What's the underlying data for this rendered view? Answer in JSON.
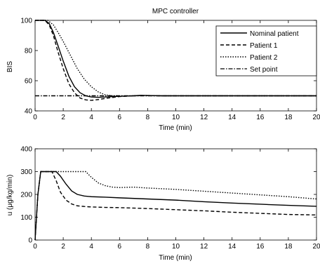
{
  "chart_data": [
    {
      "type": "line",
      "title": "MPC controller",
      "xlabel": "Time (min)",
      "ylabel": "BIS",
      "xlim": [
        0,
        20
      ],
      "ylim": [
        40,
        100
      ],
      "xticks": [
        0,
        2,
        4,
        6,
        8,
        10,
        12,
        14,
        16,
        18,
        20
      ],
      "yticks": [
        40,
        60,
        80,
        100
      ],
      "grid": false,
      "legend_position": "top-right",
      "series": [
        {
          "name": "Nominal patient",
          "style": "solid",
          "x": [
            0,
            0.7,
            1.0,
            1.3,
            1.6,
            2.0,
            2.4,
            2.8,
            3.2,
            3.6,
            4.0,
            4.5,
            5.0,
            6.0,
            7.0,
            7.5,
            8.0,
            9.0,
            10,
            12,
            14,
            16,
            18,
            20
          ],
          "y": [
            100,
            100,
            98,
            92,
            84,
            73,
            63,
            56,
            52,
            50,
            49.2,
            49,
            49.2,
            49.7,
            50,
            50.3,
            50.2,
            50,
            50,
            50,
            50,
            50,
            50,
            50
          ]
        },
        {
          "name": "Patient 1",
          "style": "dashed",
          "x": [
            0,
            0.7,
            1.0,
            1.3,
            1.6,
            2.0,
            2.4,
            2.8,
            3.2,
            3.6,
            4.0,
            4.5,
            5.0,
            6.0,
            7.0,
            7.5,
            8.0,
            9.0,
            10,
            12,
            14,
            16,
            18,
            20
          ],
          "y": [
            100,
            100,
            97,
            90,
            80,
            68,
            58,
            52,
            48.5,
            47.3,
            47,
            47.5,
            48.3,
            49.5,
            50,
            50.2,
            50.1,
            50,
            50,
            50,
            50,
            50,
            50,
            50
          ]
        },
        {
          "name": "Patient 2",
          "style": "dotted",
          "x": [
            0,
            0.9,
            1.3,
            1.7,
            2.0,
            2.5,
            3.0,
            3.5,
            4.0,
            4.5,
            5.0,
            5.5,
            6.0,
            7.0,
            8.0,
            9.0,
            10,
            12,
            14,
            16,
            18,
            20
          ],
          "y": [
            100,
            100,
            97,
            91,
            86,
            77,
            68,
            61,
            56,
            52.5,
            50.6,
            50,
            49.8,
            50,
            50.2,
            50,
            50,
            50,
            50,
            50,
            50,
            50
          ]
        },
        {
          "name": "Set point",
          "style": "dashdot",
          "x": [
            0,
            20
          ],
          "y": [
            50,
            50
          ]
        }
      ]
    },
    {
      "type": "line",
      "title": "",
      "xlabel": "Time (min)",
      "ylabel": "u (μg/kg/min)",
      "xlim": [
        0,
        20
      ],
      "ylim": [
        0,
        400
      ],
      "xticks": [
        0,
        2,
        4,
        6,
        8,
        10,
        12,
        14,
        16,
        18,
        20
      ],
      "yticks": [
        0,
        100,
        200,
        300,
        400
      ],
      "grid": false,
      "series": [
        {
          "style": "solid",
          "x": [
            0,
            0.2,
            0.4,
            0.5,
            1.0,
            1.5,
            1.8,
            2.2,
            2.6,
            3.0,
            3.5,
            4.0,
            5.0,
            6.0,
            8.0,
            10,
            12,
            14,
            16,
            18,
            20
          ],
          "y": [
            0,
            200,
            300,
            300,
            300,
            300,
            280,
            245,
            215,
            200,
            193,
            190,
            188,
            185,
            180,
            175,
            168,
            162,
            157,
            152,
            148
          ]
        },
        {
          "style": "dashed",
          "x": [
            0,
            0.2,
            0.4,
            0.5,
            1.0,
            1.2,
            1.5,
            1.8,
            2.2,
            2.6,
            3.0,
            3.5,
            4.0,
            5.0,
            6.0,
            8.0,
            10,
            12,
            14,
            16,
            18,
            20
          ],
          "y": [
            0,
            200,
            300,
            300,
            300,
            300,
            260,
            210,
            175,
            158,
            150,
            147,
            145,
            143,
            142,
            138,
            133,
            128,
            122,
            117,
            112,
            110
          ]
        },
        {
          "style": "dotted",
          "x": [
            0,
            0.2,
            0.4,
            0.5,
            1.0,
            2.0,
            3.0,
            3.6,
            4.0,
            4.5,
            5.0,
            5.5,
            6.0,
            7.0,
            8.0,
            10,
            12,
            14,
            16,
            18,
            20
          ],
          "y": [
            0,
            200,
            300,
            300,
            300,
            300,
            300,
            300,
            275,
            250,
            238,
            232,
            230,
            232,
            228,
            222,
            214,
            206,
            198,
            190,
            180
          ]
        }
      ]
    }
  ]
}
